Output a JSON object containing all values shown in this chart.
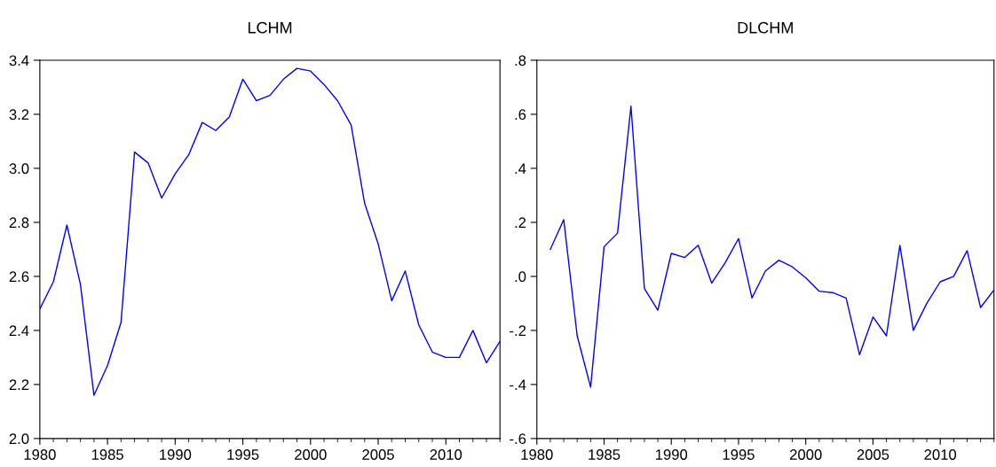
{
  "chart_data": [
    {
      "type": "line",
      "title": "LCHM",
      "xlim": [
        1980,
        2014
      ],
      "xticks": [
        1980,
        1985,
        1990,
        1995,
        2000,
        2005,
        2010
      ],
      "ylim": [
        2.0,
        3.4
      ],
      "yticks": [
        {
          "value": 2.0,
          "label": "2.0"
        },
        {
          "value": 2.2,
          "label": "2.2"
        },
        {
          "value": 2.4,
          "label": "2.4"
        },
        {
          "value": 2.6,
          "label": "2.6"
        },
        {
          "value": 2.8,
          "label": "2.8"
        },
        {
          "value": 3.0,
          "label": "3.0"
        },
        {
          "value": 3.2,
          "label": "3.2"
        },
        {
          "value": 3.4,
          "label": "3.4"
        }
      ],
      "grid": false,
      "legend": false,
      "marker": "none",
      "line_style": "solid",
      "series": [
        {
          "color": "#0000ff",
          "x": [
            1980,
            1981,
            1982,
            1983,
            1984,
            1985,
            1986,
            1987,
            1988,
            1989,
            1990,
            1991,
            1992,
            1993,
            1994,
            1995,
            1996,
            1997,
            1998,
            1999,
            2000,
            2001,
            2002,
            2003,
            2004,
            2005,
            2006,
            2007,
            2008,
            2009,
            2010,
            2011,
            2012,
            2013,
            2014
          ],
          "values": [
            2.48,
            2.58,
            2.79,
            2.57,
            2.16,
            2.27,
            2.43,
            3.06,
            3.02,
            2.89,
            2.98,
            3.05,
            3.17,
            3.14,
            3.19,
            3.33,
            3.25,
            3.27,
            3.33,
            3.37,
            3.36,
            3.31,
            3.25,
            3.16,
            2.87,
            2.72,
            2.51,
            2.62,
            2.42,
            2.32,
            2.3,
            2.3,
            2.4,
            2.28,
            2.36
          ]
        }
      ]
    },
    {
      "type": "line",
      "title": "DLCHM",
      "xlim": [
        1980,
        2014
      ],
      "xticks": [
        1980,
        1985,
        1990,
        1995,
        2000,
        2005,
        2010
      ],
      "ylim": [
        -0.6,
        0.8
      ],
      "yticks": [
        {
          "value": -0.6,
          "label": "-.6"
        },
        {
          "value": -0.4,
          "label": "-.4"
        },
        {
          "value": -0.2,
          "label": "-.2"
        },
        {
          "value": 0.0,
          "label": ".0"
        },
        {
          "value": 0.2,
          "label": ".2"
        },
        {
          "value": 0.4,
          "label": ".4"
        },
        {
          "value": 0.6,
          "label": ".6"
        },
        {
          "value": 0.8,
          "label": ".8"
        }
      ],
      "grid": false,
      "legend": false,
      "marker": "none",
      "line_style": "solid",
      "series": [
        {
          "color": "#0000ff",
          "x": [
            1981,
            1982,
            1983,
            1984,
            1985,
            1986,
            1987,
            1988,
            1989,
            1990,
            1991,
            1992,
            1993,
            1994,
            1995,
            1996,
            1997,
            1998,
            1999,
            2000,
            2001,
            2002,
            2003,
            2004,
            2005,
            2006,
            2007,
            2008,
            2009,
            2010,
            2011,
            2012,
            2013,
            2014
          ],
          "values": [
            0.1,
            0.21,
            -0.22,
            -0.41,
            0.11,
            0.16,
            0.63,
            -0.045,
            -0.125,
            0.085,
            0.07,
            0.115,
            -0.025,
            0.05,
            0.14,
            -0.08,
            0.02,
            0.06,
            0.035,
            -0.005,
            -0.055,
            -0.06,
            -0.08,
            -0.29,
            -0.15,
            -0.22,
            0.115,
            -0.2,
            -0.1,
            -0.02,
            0.0,
            0.095,
            -0.115,
            -0.05
          ]
        }
      ]
    }
  ]
}
